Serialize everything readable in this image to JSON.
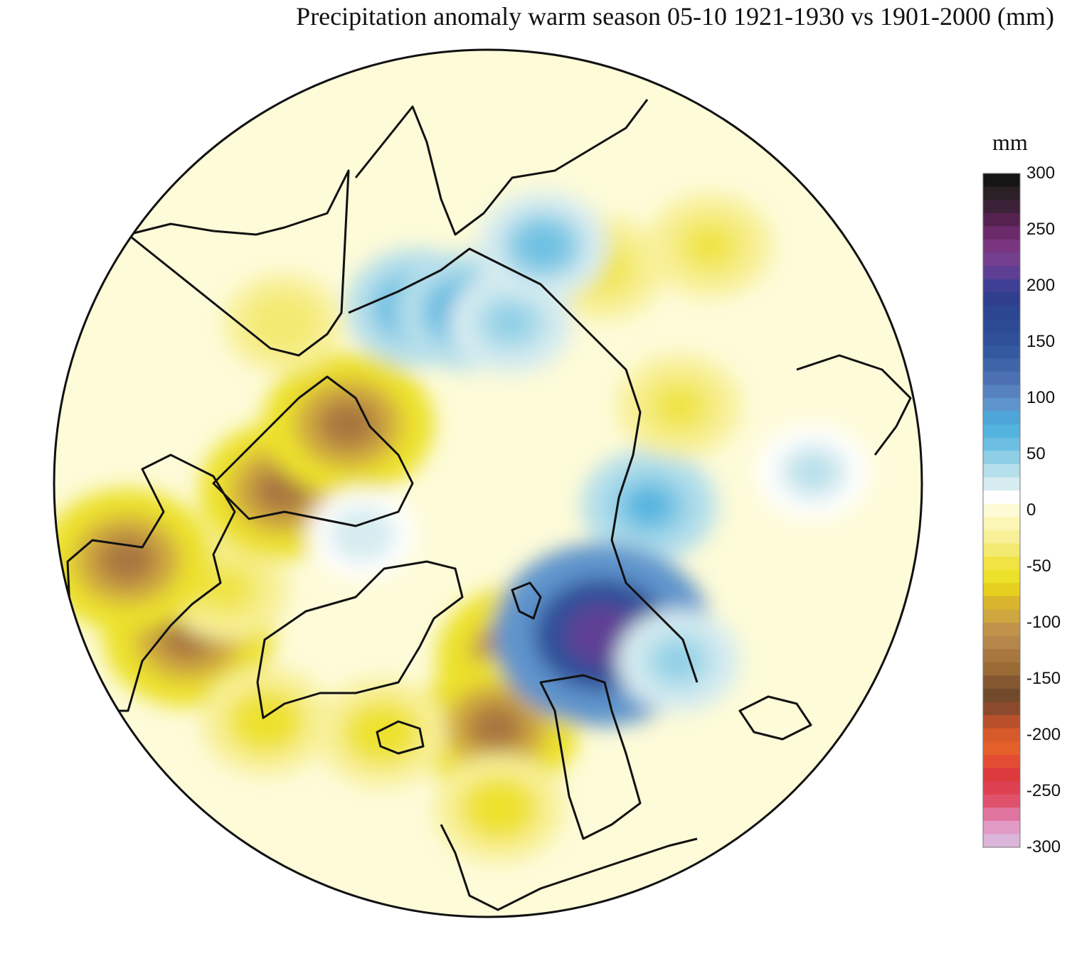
{
  "title": "Precipitation anomaly warm season 05-10 1921-1930 vs 1901-2000 (mm)",
  "legend": {
    "unit": "mm",
    "min": -300,
    "max": 300,
    "tick_labels": [
      "300",
      "250",
      "200",
      "150",
      "100",
      "50",
      "0",
      "-50",
      "-100",
      "-150",
      "-200",
      "-250",
      "-300"
    ],
    "colors_top_to_bottom": [
      "#151515",
      "#2a2026",
      "#3c2238",
      "#55224f",
      "#6b2a6a",
      "#7a3580",
      "#733f8e",
      "#5e3f94",
      "#3f3f95",
      "#2f3f8e",
      "#2d4691",
      "#2d4a95",
      "#2f5098",
      "#34599f",
      "#3f64a8",
      "#4c70b2",
      "#5682bf",
      "#5e94cc",
      "#4ea6d8",
      "#55b3df",
      "#6cbfe2",
      "#8fcfe6",
      "#b5dfeb",
      "#d7ecf0",
      "#ffffff",
      "#fdfbd6",
      "#fbf6b5",
      "#f8f099",
      "#f3ea72",
      "#f0e343",
      "#ece12a",
      "#e6cf1e",
      "#d9b52d",
      "#cfa740",
      "#c1934a",
      "#b6874a",
      "#a8773f",
      "#9a6a35",
      "#845730",
      "#704a2b",
      "#8a4a2b",
      "#b8512b",
      "#d75a2a",
      "#e4602a",
      "#e34d34",
      "#dd3a3d",
      "#dc4051",
      "#e0526c",
      "#e075a0",
      "#e29bc5",
      "#dcb6da"
    ]
  },
  "map": {
    "projection": "north polar stereographic",
    "blobs": [
      {
        "lonlat": [
          -160,
          57
        ],
        "value": -140
      },
      {
        "lonlat": [
          -150,
          45
        ],
        "value": -120
      },
      {
        "lonlat": [
          -125,
          40
        ],
        "value": -60
      },
      {
        "lonlat": [
          -150,
          30
        ],
        "value": -60
      },
      {
        "lonlat": [
          -85,
          28
        ],
        "value": -130
      },
      {
        "lonlat": [
          -105,
          30
        ],
        "value": -60
      },
      {
        "lonlat": [
          -80,
          38
        ],
        "value": -50
      },
      {
        "lonlat": [
          -70,
          22
        ],
        "value": -130
      },
      {
        "lonlat": [
          -60,
          52
        ],
        "value": -120
      },
      {
        "lonlat": [
          -35,
          62
        ],
        "value": -130
      },
      {
        "lonlat": [
          -20,
          42
        ],
        "value": -40
      },
      {
        "lonlat": [
          130,
          60
        ],
        "value": 70
      },
      {
        "lonlat": [
          175,
          55
        ],
        "value": 210
      },
      {
        "lonlat": [
          165,
          42
        ],
        "value": 50
      },
      {
        "lonlat": [
          100,
          52
        ],
        "value": -50
      },
      {
        "lonlat": [
          60,
          45
        ],
        "value": -50
      },
      {
        "lonlat": [
          75,
          30
        ],
        "value": -50
      },
      {
        "lonlat": [
          10,
          55
        ],
        "value": 80
      },
      {
        "lonlat": [
          25,
          58
        ],
        "value": 80
      },
      {
        "lonlat": [
          40,
          60
        ],
        "value": 50
      },
      {
        "lonlat": [
          45,
          45
        ],
        "value": 60
      },
      {
        "lonlat": [
          120,
          30
        ],
        "value": 35
      },
      {
        "lonlat": [
          -80,
          65
        ],
        "value": 25
      }
    ]
  }
}
